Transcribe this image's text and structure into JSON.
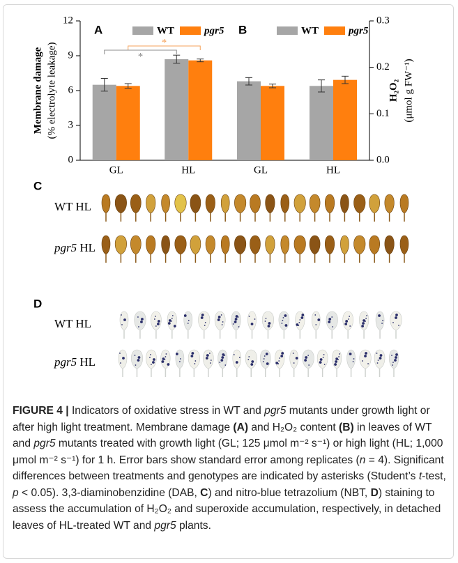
{
  "chart_data": [
    {
      "type": "bar",
      "panel": "A",
      "y_label": [
        "Membrane damage",
        "(% electrolyte leakage)"
      ],
      "categories": [
        "GL",
        "HL"
      ],
      "series": [
        {
          "name": "WT",
          "color": "#a6a6a6",
          "values": [
            6.5,
            8.7
          ],
          "errors": [
            0.55,
            0.35
          ]
        },
        {
          "name": "pgr5",
          "color": "#ff7f0e",
          "values": [
            6.4,
            8.6
          ],
          "errors": [
            0.2,
            0.12
          ]
        }
      ],
      "ylim": [
        0,
        12
      ],
      "yticks": [
        0,
        3,
        6,
        9,
        12
      ],
      "annotations": [
        {
          "text": "*",
          "color": "#f5a25a"
        },
        {
          "text": "*",
          "color": "#8c8c8c"
        }
      ]
    },
    {
      "type": "bar",
      "panel": "B",
      "y_label": [
        "H₂O₂",
        "(μmol g FW⁻¹)"
      ],
      "categories": [
        "GL",
        "HL"
      ],
      "series": [
        {
          "name": "WT",
          "color": "#a6a6a6",
          "values": [
            0.17,
            0.16
          ],
          "errors": [
            0.008,
            0.013
          ]
        },
        {
          "name": "pgr5",
          "color": "#ff7f0e",
          "values": [
            0.16,
            0.173
          ],
          "errors": [
            0.004,
            0.008
          ]
        }
      ],
      "ylim": [
        0,
        0.3
      ],
      "yticks": [
        {
          "value": 0,
          "label": "0.0"
        },
        0.1,
        0.2,
        0.3
      ]
    }
  ],
  "staining": [
    {
      "panel": "C",
      "rows": [
        {
          "genotype": "WT",
          "italic": false,
          "condition": "HL"
        },
        {
          "genotype": "pgr5",
          "italic": true,
          "condition": "HL"
        }
      ]
    },
    {
      "panel": "D",
      "rows": [
        {
          "genotype": "WT",
          "italic": false,
          "condition": "HL"
        },
        {
          "genotype": "pgr5",
          "italic": true,
          "condition": "HL"
        }
      ]
    }
  ],
  "caption": {
    "runs": [
      {
        "text": "FIGURE 4 |",
        "bold": true
      },
      {
        "text": " Indicators of oxidative stress in WT and "
      },
      {
        "text": "pgr5",
        "italic": true
      },
      {
        "text": " mutants under growth light or after high light treatment. Membrane damage "
      },
      {
        "text": "(A)",
        "bold": true
      },
      {
        "text": " and H₂O₂ content "
      },
      {
        "text": "(B)",
        "bold": true
      },
      {
        "text": " in leaves of WT and "
      },
      {
        "text": "pgr5",
        "italic": true
      },
      {
        "text": " mutants treated with growth light (GL; 125 μmol m⁻² s⁻¹) or high light (HL; 1,000 μmol m⁻² s⁻¹) for 1 h. Error bars show standard error among replicates ("
      },
      {
        "text": "n",
        "italic": true
      },
      {
        "text": " = 4). Significant differences between treatments and genotypes are indicated by asterisks (Student’s "
      },
      {
        "text": "t",
        "italic": true
      },
      {
        "text": "-test, "
      },
      {
        "text": "p",
        "italic": true
      },
      {
        "text": " < 0.05). 3,3-diaminobenzidine (DAB, "
      },
      {
        "text": "C",
        "bold": true
      },
      {
        "text": ") and nitro-blue tetrazolium (NBT, "
      },
      {
        "text": "D",
        "bold": true
      },
      {
        "text": ") staining to assess the accumulation of H₂O₂ and superoxide accumulation, respectively, in detached leaves of HL-treated WT and "
      },
      {
        "text": "pgr5",
        "italic": true
      },
      {
        "text": " plants."
      }
    ]
  }
}
